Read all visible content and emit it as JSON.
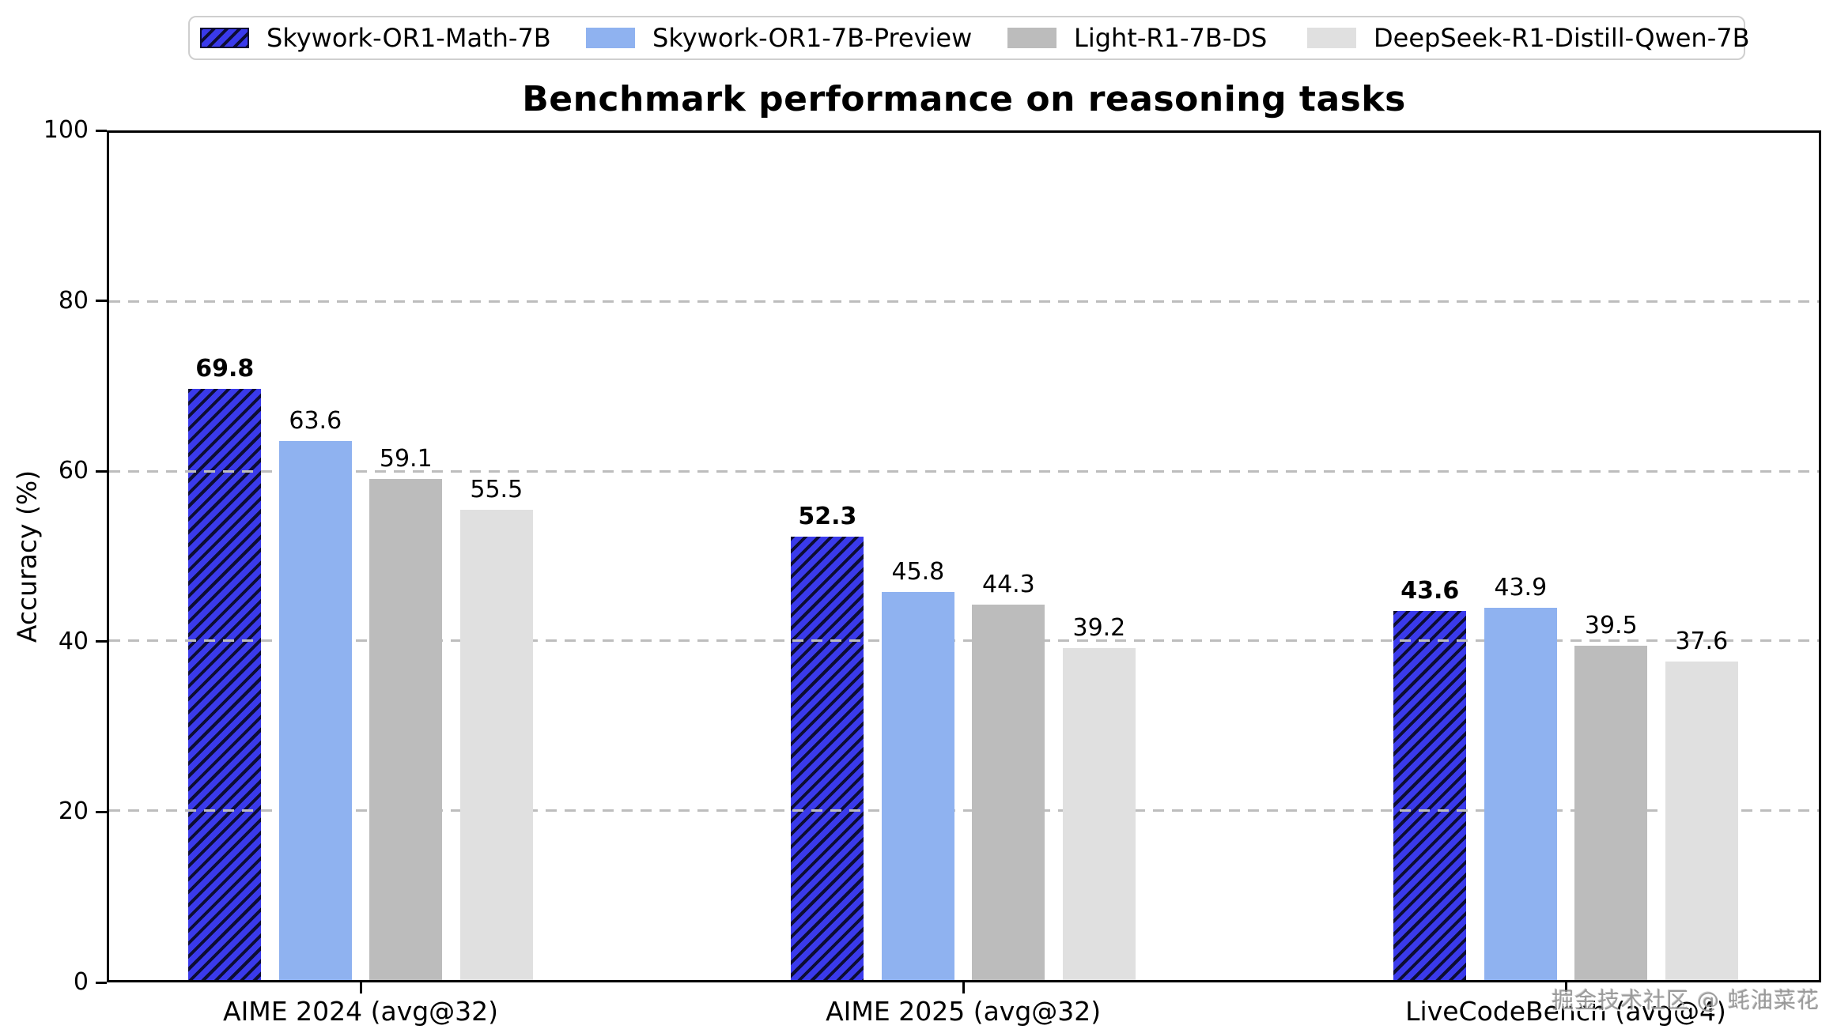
{
  "chart_data": {
    "type": "bar",
    "title": "Benchmark performance on reasoning tasks",
    "xlabel": "",
    "ylabel": "Accuracy (%)",
    "ylim": [
      0,
      100
    ],
    "yticks": [
      0,
      20,
      40,
      60,
      80,
      100
    ],
    "grid": {
      "horizontal": true,
      "style": "dashed",
      "at": [
        20,
        40,
        60,
        80
      ],
      "color": "#bdbdbd"
    },
    "legend_position": "top-center, horizontal, boxed",
    "categories": [
      "AIME 2024 (avg@32)",
      "AIME 2025 (avg@32)",
      "LiveCodeBench (avg@4)"
    ],
    "series": [
      {
        "name": "Skywork-OR1-Math-7B",
        "values": [
          69.8,
          52.3,
          43.6
        ],
        "color": "#3a3aeb",
        "hatch": "diagonal-forward",
        "hatch_color": "#0d0d33",
        "emphasized_labels": true
      },
      {
        "name": "Skywork-OR1-7B-Preview",
        "values": [
          63.6,
          45.8,
          43.9
        ],
        "color": "#8fb2f0"
      },
      {
        "name": "Light-R1-7B-DS",
        "values": [
          59.1,
          44.3,
          39.5
        ],
        "color": "#bcbcbc"
      },
      {
        "name": "DeepSeek-R1-Distill-Qwen-7B",
        "values": [
          55.5,
          39.2,
          37.6
        ],
        "color": "#e0e0e0"
      }
    ],
    "value_labels_shown": true,
    "axis_color": "#000000"
  },
  "watermark": {
    "text": "掘金技术社区 @ 蚝油菜花"
  }
}
